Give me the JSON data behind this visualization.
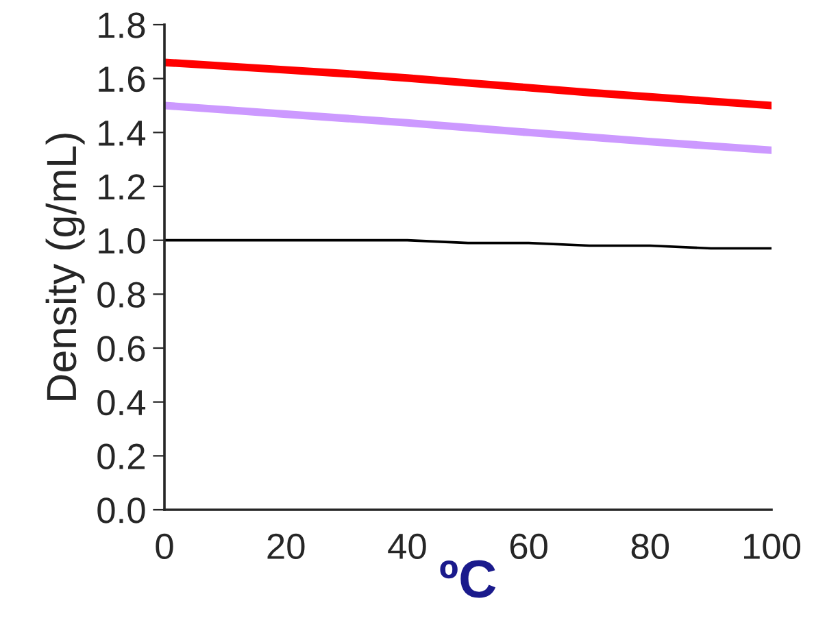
{
  "chart_data": {
    "type": "line",
    "xlabel": "ºC",
    "ylabel": "Density (g/mL)",
    "x": [
      0,
      10,
      20,
      30,
      40,
      50,
      60,
      70,
      80,
      90,
      100
    ],
    "series": [
      {
        "color": "#ff0000",
        "values": [
          1.66,
          1.646,
          1.632,
          1.618,
          1.602,
          1.584,
          1.566,
          1.548,
          1.532,
          1.516,
          1.5
        ]
      },
      {
        "color": "#cc99ff",
        "values": [
          1.5,
          1.484,
          1.468,
          1.452,
          1.436,
          1.418,
          1.4,
          1.383,
          1.366,
          1.35,
          1.334
        ]
      },
      {
        "color": "#000000",
        "values": [
          1.0,
          1.0,
          1.0,
          1.0,
          1.0,
          0.99,
          0.99,
          0.98,
          0.98,
          0.97,
          0.97
        ]
      }
    ],
    "xlim": [
      0,
      100
    ],
    "xticks": [
      0,
      20,
      40,
      60,
      80,
      100
    ],
    "ylim": [
      0.0,
      1.8
    ],
    "yticks": [
      {
        "value": 0,
        "label": "0.0"
      },
      {
        "value": 0.2,
        "label": "0.2"
      },
      {
        "value": 0.4,
        "label": "0.4"
      },
      {
        "value": 0.6,
        "label": "0.6"
      },
      {
        "value": 0.8,
        "label": "0.8"
      },
      {
        "value": 1.0,
        "label": "1.0"
      },
      {
        "value": 1.2,
        "label": "1.2"
      },
      {
        "value": 1.4,
        "label": "1.4"
      },
      {
        "value": 1.6,
        "label": "1.6"
      },
      {
        "value": 1.8,
        "label": "1.8"
      }
    ],
    "grid": false,
    "marker": "none",
    "line_style": "solid"
  }
}
